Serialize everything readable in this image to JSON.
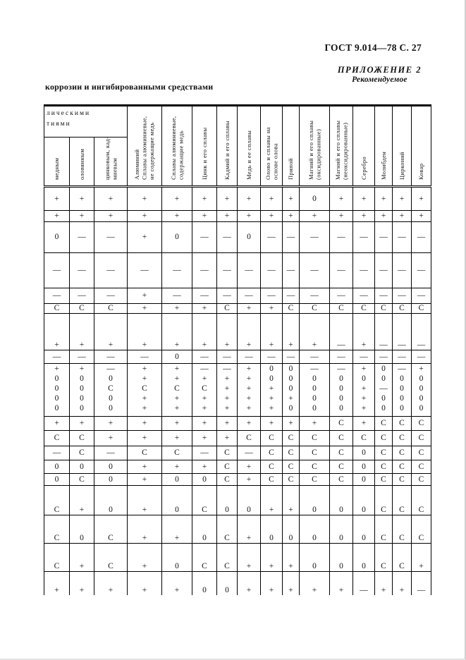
{
  "header": {
    "gost_ref": "ГОСТ 9.014—78 С. 27",
    "appendix_title": "ПРИЛОЖЕНИЕ 2",
    "appendix_note": "Рекомендуемое",
    "intro_text": "коррозии и ингибированными средствами"
  },
  "table": {
    "continuation_header": "лическими\nтиями",
    "columns": [
      "медным",
      "оловянным",
      "цинковым, кад-\nмиевым",
      "Алюминий\nСплавы алюминиевые,\nне содержащие медь",
      "Сплавы алюминиевые,\nсодержащие медь",
      "Цинк и его сплавы",
      "Кадмий и его сплавы",
      "Медь и ее сплавы",
      "Олово и сплавы на\nоснове олова",
      "Припой",
      "Магний и его сплавы\n(оксидированные)",
      "Магний и его сплавы\n(неоксидированные)",
      "Серебро",
      "Молибден",
      "Цирконий",
      "Ковар"
    ],
    "rows": [
      {
        "cells": [
          "+",
          "+",
          "+",
          "+",
          "+",
          "+",
          "+",
          "+",
          "+",
          "+",
          "0",
          "+",
          "+",
          "+",
          "+",
          "+"
        ]
      },
      {
        "cells": [
          "+",
          "+",
          "+",
          "+",
          "+",
          "+",
          "+",
          "+",
          "+",
          "+",
          "+",
          "+",
          "+",
          "+",
          "+",
          "+"
        ]
      },
      {
        "cells": [
          "0",
          "—",
          "—",
          "+",
          "0",
          "—",
          "—",
          "0",
          "—",
          "—",
          "—",
          "—",
          "—",
          "—",
          "—",
          "—"
        ]
      },
      {
        "cells": [
          "—",
          "—",
          "—",
          "—",
          "—",
          "—",
          "—",
          "—",
          "—",
          "—",
          "—",
          "—",
          "—",
          "—",
          "—",
          "—"
        ]
      },
      {
        "cells": [
          "—",
          "—",
          "—",
          "+",
          "—",
          "—",
          "—",
          "—",
          "—",
          "—",
          "—",
          "—",
          "—",
          "—",
          "—",
          "—"
        ]
      },
      {
        "cells": [
          "С",
          "С",
          "С",
          "+",
          "+",
          "+",
          "С",
          "+",
          "+",
          "С",
          "С",
          "С",
          "С",
          "С",
          "С",
          "С"
        ]
      },
      {
        "cells": [
          "+",
          "+",
          "+",
          "+",
          "+",
          "+",
          "+",
          "+",
          "+",
          "+",
          "+",
          "—",
          "+",
          "—",
          "—",
          "—"
        ]
      },
      {
        "cells": [
          "—",
          "—",
          "—",
          "—",
          "0",
          "—",
          "—",
          "—",
          "—",
          "—",
          "—",
          "—",
          "—",
          "—",
          "—",
          "—"
        ]
      },
      {
        "lines": [
          [
            "+",
            "+",
            "—",
            "+",
            "+",
            "—",
            "—",
            "+",
            "0",
            "0",
            "—",
            "—",
            "+",
            "0",
            "—",
            "+"
          ],
          [
            "0",
            "0",
            "0",
            "+",
            "+",
            "+",
            "+",
            "+",
            "0",
            "0",
            "0",
            "0",
            "0",
            "0",
            "0",
            "0"
          ],
          [
            "0",
            "0",
            "С",
            "С",
            "С",
            "С",
            "+",
            "+",
            "+",
            "0",
            "0",
            "0",
            "+",
            "—",
            "0",
            "0"
          ],
          [
            "0",
            "0",
            "0",
            "+",
            "+",
            "+",
            "+",
            "+",
            "+",
            "+",
            "0",
            "0",
            "+",
            "0",
            "0",
            "0"
          ],
          [
            "0",
            "0",
            "0",
            "+",
            "+",
            "+",
            "+",
            "+",
            "+",
            "0",
            "0",
            "0",
            "+",
            "0",
            "0",
            "0"
          ]
        ]
      },
      {
        "cells": [
          "+",
          "+",
          "+",
          "+",
          "+",
          "+",
          "+",
          "+",
          "+",
          "+",
          "+",
          "С",
          "+",
          "С",
          "С",
          "С"
        ]
      },
      {
        "cells": [
          "С",
          "С",
          "+",
          "+",
          "+",
          "+",
          "+",
          "С",
          "С",
          "С",
          "С",
          "С",
          "С",
          "С",
          "С",
          "С"
        ]
      },
      {
        "cells": [
          "—",
          "С",
          "—",
          "С",
          "С",
          "—",
          "С",
          "—",
          "С",
          "С",
          "С",
          "С",
          "0",
          "С",
          "С",
          "С"
        ]
      },
      {
        "cells": [
          "0",
          "0",
          "0",
          "+",
          "+",
          "+",
          "С",
          "+",
          "С",
          "С",
          "С",
          "С",
          "0",
          "С",
          "С",
          "С"
        ]
      },
      {
        "cells": [
          "0",
          "С",
          "0",
          "+",
          "0",
          "0",
          "С",
          "+",
          "С",
          "С",
          "С",
          "С",
          "0",
          "С",
          "С",
          "С"
        ]
      },
      {
        "cells": [
          "С",
          "+",
          "0",
          "+",
          "0",
          "С",
          "0",
          "0",
          "+",
          "+",
          "0",
          "0",
          "0",
          "С",
          "С",
          "С"
        ]
      },
      {
        "cells": [
          "С",
          "0",
          "С",
          "+",
          "+",
          "0",
          "С",
          "+",
          "0",
          "0",
          "0",
          "0",
          "0",
          "С",
          "С",
          "С"
        ]
      },
      {
        "cells": [
          "С",
          "+",
          "С",
          "+",
          "0",
          "С",
          "С",
          "+",
          "+",
          "+",
          "0",
          "0",
          "0",
          "С",
          "С",
          "+"
        ]
      },
      {
        "cells": [
          "+",
          "+",
          "+",
          "+",
          "+",
          "0",
          "0",
          "+",
          "+",
          "+",
          "+",
          "+",
          "—",
          "+",
          "+",
          "—"
        ]
      }
    ]
  }
}
